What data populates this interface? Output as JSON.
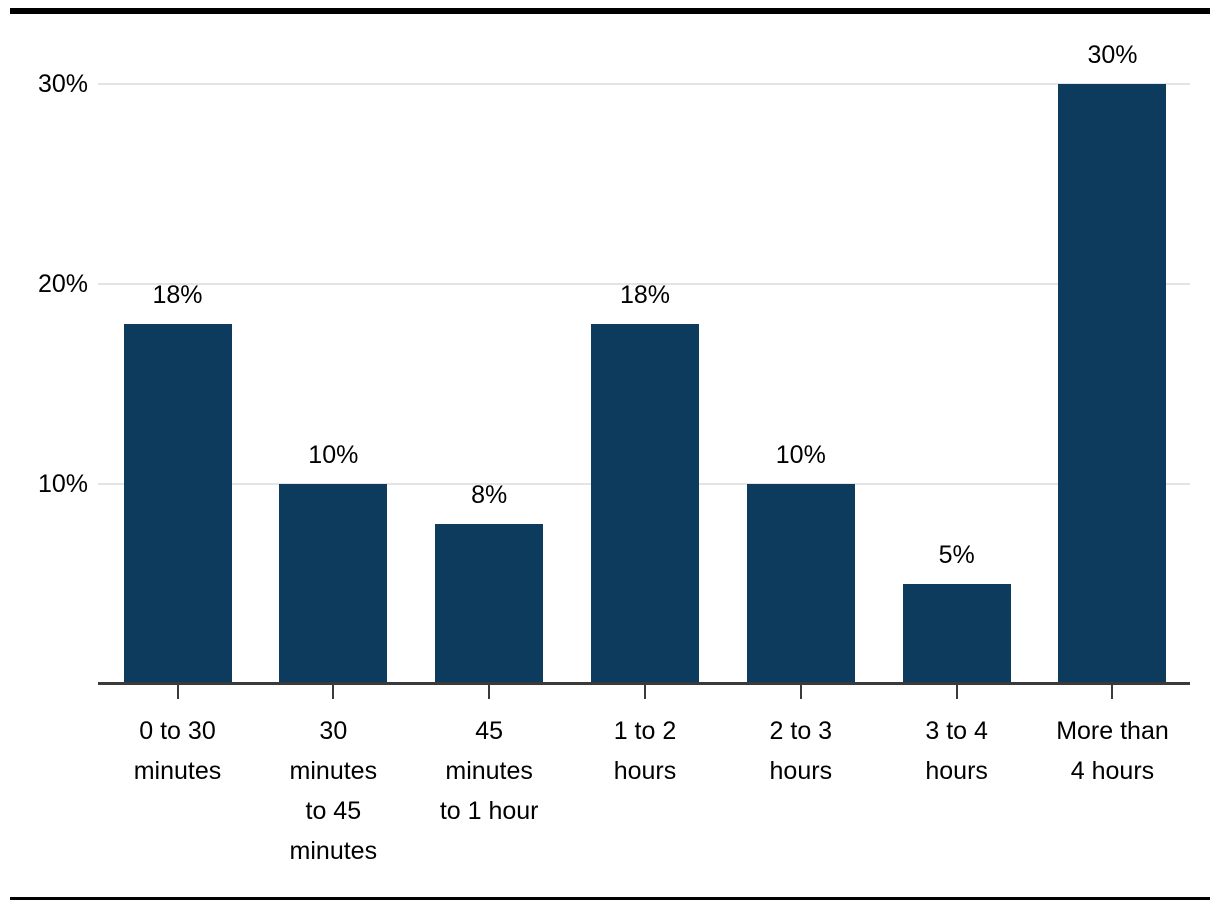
{
  "chart_data": {
    "type": "bar",
    "title": "",
    "xlabel": "",
    "ylabel": "",
    "categories": [
      "0 to 30 minutes",
      "30 minutes to 45 minutes",
      "45 minutes to 1 hour",
      "1 to 2 hours",
      "2 to 3 hours",
      "3 to 4 hours",
      "More than 4 hours"
    ],
    "category_label_lines": [
      [
        "0 to 30",
        "minutes"
      ],
      [
        "30",
        "minutes",
        "to 45",
        "minutes"
      ],
      [
        "45",
        "minutes",
        "to 1 hour"
      ],
      [
        "1 to 2",
        "hours"
      ],
      [
        "2 to 3",
        "hours"
      ],
      [
        "3 to 4",
        "hours"
      ],
      [
        "More than",
        "4 hours"
      ]
    ],
    "values": [
      18,
      10,
      8,
      18,
      10,
      5,
      30
    ],
    "value_labels": [
      "18%",
      "10%",
      "8%",
      "18%",
      "10%",
      "5%",
      "30%"
    ],
    "y_ticks": [
      {
        "value": 10,
        "label": "10%"
      },
      {
        "value": 20,
        "label": "20%"
      },
      {
        "value": 30,
        "label": "30%"
      }
    ],
    "ylim": [
      0,
      34
    ],
    "grid": true,
    "legend_position": "none",
    "colors": {
      "bar": "#0c3b5d",
      "gridline": "#e4e4e4",
      "axis": "#3a3a3a",
      "text": "#000000",
      "rule": "#000000"
    }
  }
}
